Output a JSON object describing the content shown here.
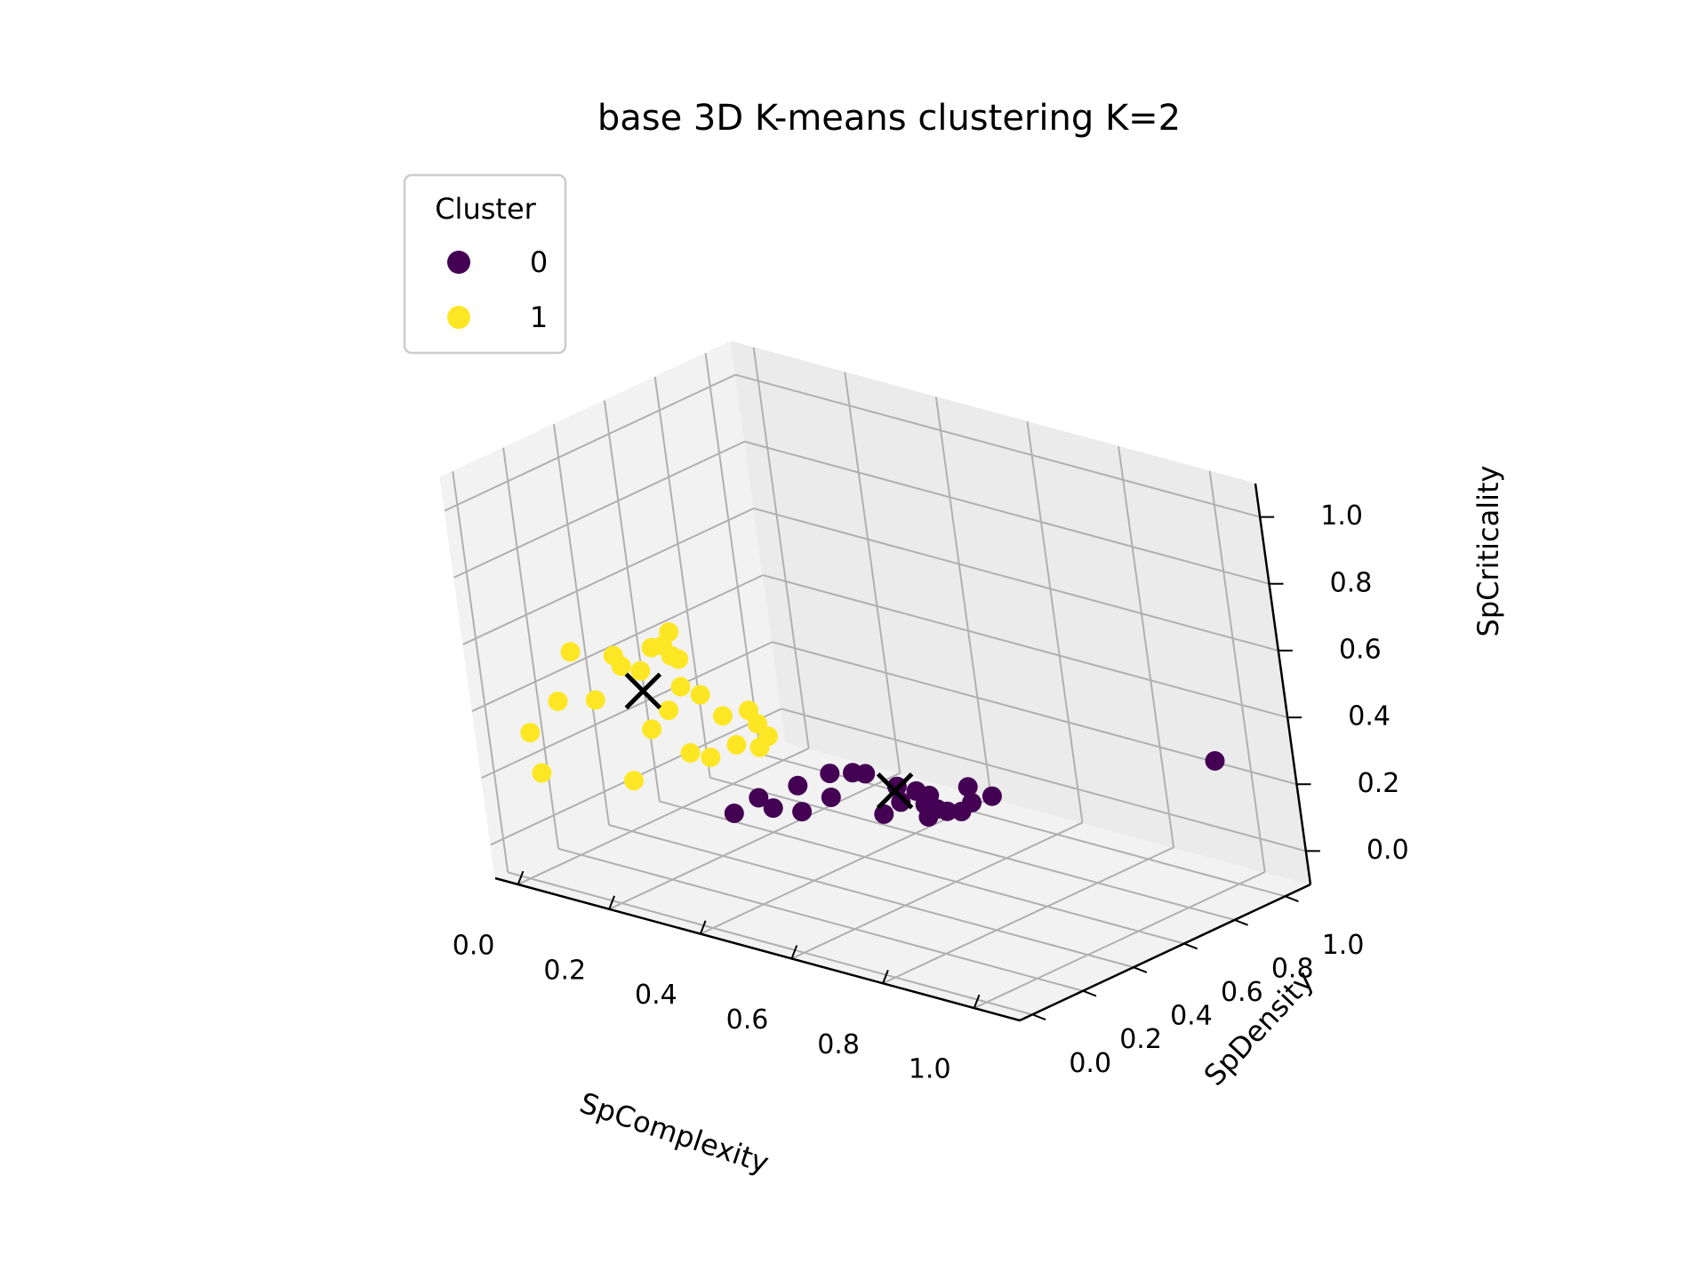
{
  "chart_data": {
    "type": "scatter",
    "projection": "3d",
    "title": "base 3D K-means clustering K=2",
    "xlabel": "SpComplexity",
    "ylabel": "SpDensity",
    "zlabel": "SpCriticality",
    "xlim": [
      -0.05,
      1.1
    ],
    "ylim": [
      -0.05,
      1.1
    ],
    "zlim": [
      -0.1,
      1.1
    ],
    "xticks": [
      "0.0",
      "0.2",
      "0.4",
      "0.6",
      "0.8",
      "1.0"
    ],
    "yticks": [
      "0.0",
      "0.2",
      "0.4",
      "0.6",
      "0.8",
      "1.0"
    ],
    "zticks": [
      "0.0",
      "0.2",
      "0.4",
      "0.6",
      "0.8",
      "1.0"
    ],
    "grid": true,
    "legend": {
      "title": "Cluster",
      "placement": "top-left",
      "entries": [
        {
          "label": "0",
          "color": "#440154"
        },
        {
          "label": "1",
          "color": "#fde725"
        }
      ]
    },
    "series": [
      {
        "name": "0",
        "color": "#440154",
        "points": [
          [
            0.3,
            0.3,
            0.1
          ],
          [
            0.33,
            0.35,
            0.14
          ],
          [
            0.36,
            0.35,
            0.12
          ],
          [
            0.4,
            0.39,
            0.11
          ],
          [
            0.38,
            0.42,
            0.17
          ],
          [
            0.44,
            0.44,
            0.15
          ],
          [
            0.42,
            0.48,
            0.2
          ],
          [
            0.46,
            0.5,
            0.21
          ],
          [
            0.47,
            0.53,
            0.2
          ],
          [
            0.5,
            0.53,
            0.09
          ],
          [
            0.52,
            0.56,
            0.17
          ],
          [
            0.53,
            0.55,
            0.13
          ],
          [
            0.55,
            0.58,
            0.16
          ],
          [
            0.56,
            0.59,
            0.12
          ],
          [
            0.57,
            0.58,
            0.09
          ],
          [
            0.58,
            0.6,
            0.11
          ],
          [
            0.56,
            0.61,
            0.14
          ],
          [
            0.59,
            0.62,
            0.1
          ],
          [
            0.61,
            0.64,
            0.1
          ],
          [
            0.63,
            0.65,
            0.13
          ],
          [
            0.62,
            0.66,
            0.17
          ],
          [
            0.66,
            0.68,
            0.15
          ],
          [
            0.97,
            1.02,
            0.25
          ]
        ]
      },
      {
        "name": "1",
        "color": "#fde725",
        "points": [
          [
            0.02,
            0.04,
            0.33
          ],
          [
            0.05,
            0.11,
            0.41
          ],
          [
            0.04,
            0.03,
            0.22
          ],
          [
            0.1,
            0.1,
            0.58
          ],
          [
            0.16,
            0.16,
            0.57
          ],
          [
            0.13,
            0.12,
            0.44
          ],
          [
            0.15,
            0.2,
            0.52
          ],
          [
            0.18,
            0.22,
            0.51
          ],
          [
            0.2,
            0.24,
            0.58
          ],
          [
            0.22,
            0.25,
            0.59
          ],
          [
            0.23,
            0.26,
            0.56
          ],
          [
            0.22,
            0.28,
            0.62
          ],
          [
            0.24,
            0.27,
            0.55
          ],
          [
            0.2,
            0.2,
            0.35
          ],
          [
            0.23,
            0.28,
            0.46
          ],
          [
            0.26,
            0.3,
            0.44
          ],
          [
            0.22,
            0.24,
            0.4
          ],
          [
            0.28,
            0.34,
            0.37
          ],
          [
            0.31,
            0.39,
            0.38
          ],
          [
            0.32,
            0.4,
            0.34
          ],
          [
            0.18,
            0.14,
            0.21
          ],
          [
            0.25,
            0.25,
            0.28
          ],
          [
            0.27,
            0.29,
            0.26
          ],
          [
            0.29,
            0.36,
            0.28
          ],
          [
            0.33,
            0.38,
            0.28
          ],
          [
            0.34,
            0.4,
            0.31
          ]
        ]
      }
    ],
    "centroids": [
      {
        "cluster": "1",
        "point": [
          0.18,
          0.22,
          0.45
        ],
        "marker": "x",
        "color": "#000000"
      },
      {
        "cluster": "0",
        "point": [
          0.52,
          0.55,
          0.16
        ],
        "marker": "x",
        "color": "#000000"
      }
    ]
  }
}
